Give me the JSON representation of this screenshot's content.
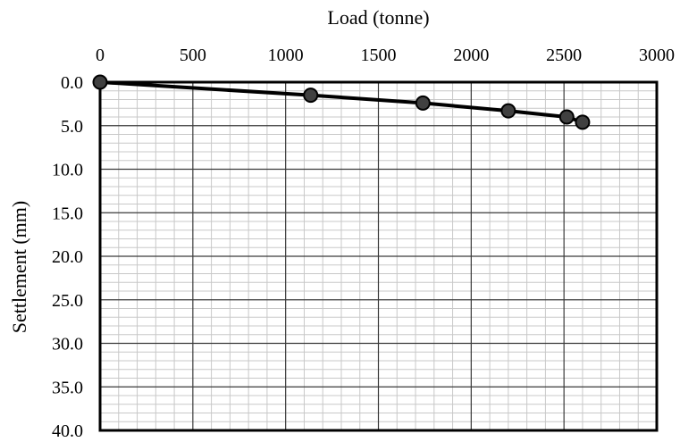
{
  "chart_data": {
    "type": "line",
    "xlabel": "Load (tonne)",
    "ylabel": "Settlement (mm)",
    "x_axis_position": "top",
    "y_axis_inverted": true,
    "xlim": [
      0,
      3000
    ],
    "ylim": [
      0,
      40
    ],
    "xticks": [
      "0",
      "500",
      "1000",
      "1500",
      "2000",
      "2500",
      "3000"
    ],
    "yticks": [
      "0.0",
      "5.0",
      "10.0",
      "15.0",
      "20.0",
      "25.0",
      "30.0",
      "35.0",
      "40.0"
    ],
    "grid": true,
    "legend": "none",
    "series": [
      {
        "marker": "circle",
        "color": "#000000",
        "marker_fill": "#404040",
        "x": [
          0,
          1135,
          1740,
          2200,
          2515,
          2600
        ],
        "y": [
          0.0,
          1.5,
          2.4,
          3.3,
          4.0,
          4.6
        ]
      }
    ]
  }
}
